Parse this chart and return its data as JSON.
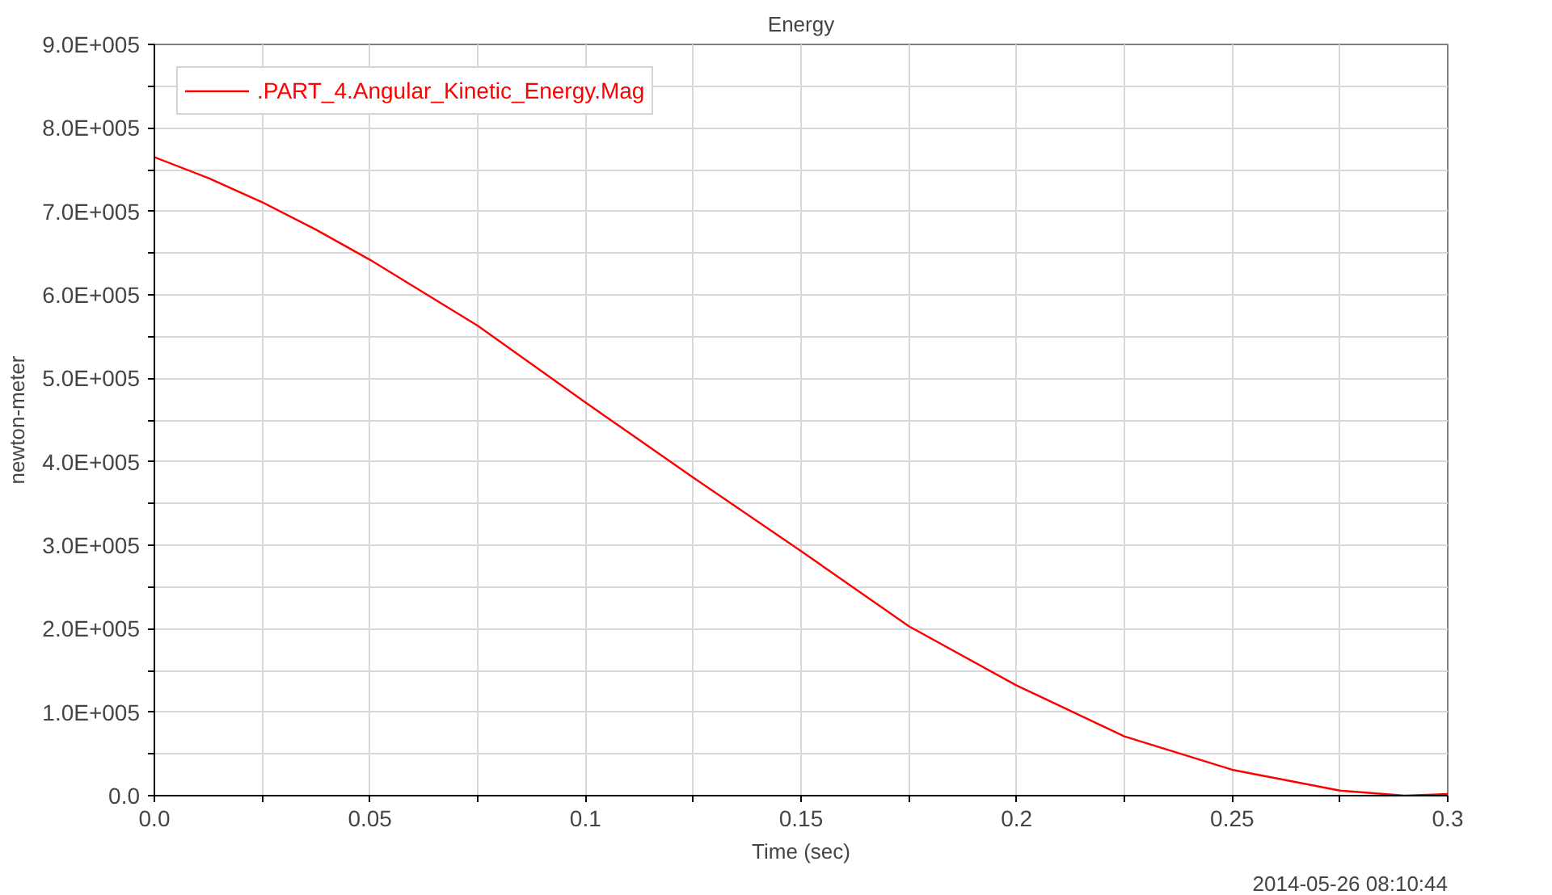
{
  "chart_data": {
    "type": "line",
    "title": "Energy",
    "xlabel": "Time (sec)",
    "ylabel": "newton-meter",
    "annotations": [
      "2014-05-26 08:10:44"
    ],
    "x": [
      0,
      0.0125,
      0.025,
      0.0375,
      0.05,
      0.075,
      0.1,
      0.125,
      0.15,
      0.175,
      0.2,
      0.225,
      0.25,
      0.275,
      0.29,
      0.3
    ],
    "series": [
      {
        "name": ".PART_4.Angular_Kinetic_Energy.Mag",
        "color": "#ff0000",
        "values": [
          765000,
          740000,
          711000,
          678000,
          642000,
          563000,
          471000,
          381000,
          293000,
          203000,
          132000,
          71000,
          31000,
          6000,
          0,
          2000
        ]
      }
    ],
    "xlim": [
      0,
      0.3
    ],
    "ylim": [
      0,
      900000
    ],
    "xticks": [
      {
        "value": 0,
        "label": "0.0"
      },
      {
        "value": 0.025,
        "label": null
      },
      0.05,
      {
        "value": 0.075,
        "label": null
      },
      0.1,
      {
        "value": 0.125,
        "label": null
      },
      0.15,
      {
        "value": 0.175,
        "label": null
      },
      0.2,
      {
        "value": 0.225,
        "label": null
      },
      0.25,
      {
        "value": 0.275,
        "label": null
      },
      0.3
    ],
    "yticks": [
      {
        "value": 0,
        "label": "0.0"
      },
      {
        "value": 50000,
        "label": null
      },
      {
        "value": 100000,
        "label": "1.0E+005"
      },
      {
        "value": 150000,
        "label": null
      },
      {
        "value": 200000,
        "label": "2.0E+005"
      },
      {
        "value": 250000,
        "label": null
      },
      {
        "value": 300000,
        "label": "3.0E+005"
      },
      {
        "value": 350000,
        "label": null
      },
      {
        "value": 400000,
        "label": "4.0E+005"
      },
      {
        "value": 450000,
        "label": null
      },
      {
        "value": 500000,
        "label": "5.0E+005"
      },
      {
        "value": 550000,
        "label": null
      },
      {
        "value": 600000,
        "label": "6.0E+005"
      },
      {
        "value": 650000,
        "label": null
      },
      {
        "value": 700000,
        "label": "7.0E+005"
      },
      {
        "value": 750000,
        "label": null
      },
      {
        "value": 800000,
        "label": "8.0E+005"
      },
      {
        "value": 850000,
        "label": null
      },
      {
        "value": 900000,
        "label": "9.0E+005"
      }
    ],
    "grid": true,
    "legend": "top left",
    "line_style": "solid"
  }
}
